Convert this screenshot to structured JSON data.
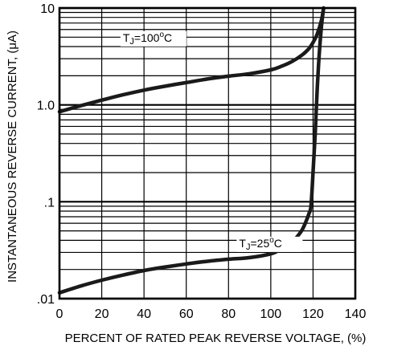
{
  "chart_data": {
    "type": "line",
    "xlabel": "PERCENT OF RATED PEAK REVERSE VOLTAGE, (%)",
    "ylabel": "INSTANTANEOUS REVERSE CURRENT, (μA)",
    "xlim": [
      0,
      140
    ],
    "ylim": [
      0.01,
      10
    ],
    "yscale": "log",
    "grid": true,
    "x_ticks": [
      0,
      20,
      40,
      60,
      80,
      100,
      120,
      140
    ],
    "x_tick_labels": [
      "0",
      "20",
      "40",
      "60",
      "80",
      "100",
      "120",
      "140"
    ],
    "y_ticks": [
      0.01,
      0.1,
      1,
      10
    ],
    "y_tick_labels": [
      ".01",
      ".1",
      "1.0",
      "10"
    ],
    "series": [
      {
        "name": "TJ=100°C",
        "label_parts": {
          "t": "T",
          "sub": "J",
          "eq": "=100",
          "sup": "o",
          "unit": "C"
        },
        "label_at": [
          30,
          4.5
        ],
        "color": "#1a1a1a",
        "x": [
          0,
          10,
          20,
          30,
          40,
          50,
          60,
          70,
          80,
          90,
          100,
          105,
          110,
          115,
          118,
          120,
          122,
          124,
          125
        ],
        "y": [
          0.85,
          0.98,
          1.12,
          1.27,
          1.42,
          1.56,
          1.7,
          1.85,
          1.98,
          2.1,
          2.3,
          2.5,
          2.8,
          3.3,
          3.8,
          4.4,
          5.4,
          7.5,
          10
        ]
      },
      {
        "name": "TJ=25°C",
        "label_parts": {
          "t": "T",
          "sub": "J",
          "eq": "=25",
          "sup": "o",
          "unit": "C"
        },
        "label_at": [
          85,
          0.034
        ],
        "color": "#1a1a1a",
        "x": [
          0,
          10,
          20,
          30,
          40,
          50,
          60,
          70,
          80,
          90,
          100,
          105,
          110,
          113,
          115,
          117,
          118,
          119,
          120,
          121,
          122,
          123,
          124,
          125
        ],
        "y": [
          0.0115,
          0.0135,
          0.0155,
          0.0175,
          0.0195,
          0.0212,
          0.0228,
          0.0243,
          0.0255,
          0.0265,
          0.029,
          0.0325,
          0.038,
          0.045,
          0.052,
          0.065,
          0.075,
          0.09,
          0.2,
          0.5,
          1.5,
          3.5,
          6.5,
          10
        ]
      }
    ]
  }
}
